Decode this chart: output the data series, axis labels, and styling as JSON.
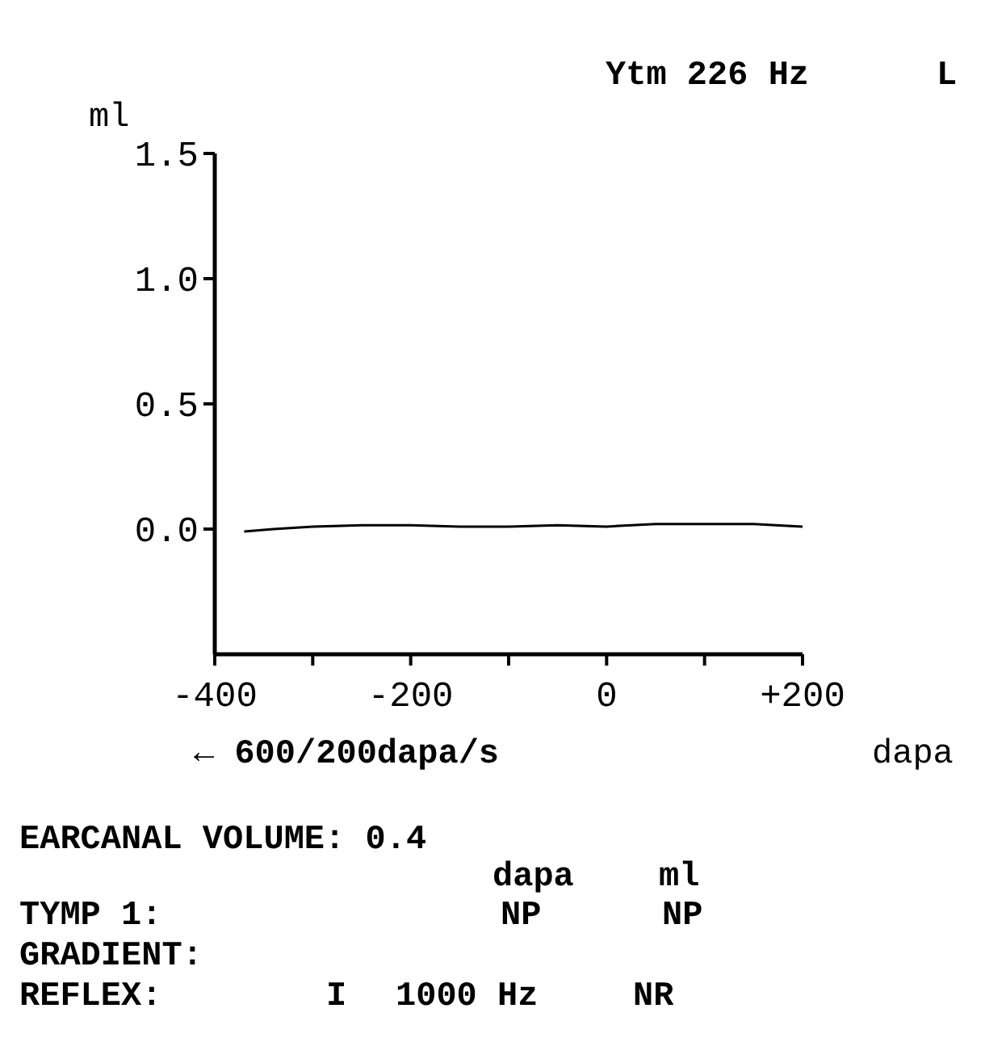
{
  "chart_data": {
    "type": "line",
    "title": "Ytm 226 Hz",
    "xlabel": "dapa",
    "ylabel": "ml",
    "annotations": [
      "L",
      "← 600/200dapa/s",
      "EARCANAL VOLUME: 0.4",
      "dapa",
      "ml",
      "TYMP 1:",
      "NP",
      "NP",
      "GRADIENT:",
      "REFLEX:",
      "I",
      "1000 Hz",
      "NR"
    ],
    "x": [
      -370,
      -340,
      -300,
      -250,
      -200,
      -150,
      -100,
      -50,
      0,
      50,
      100,
      150,
      200
    ],
    "series": [
      {
        "color": "#000000",
        "values": [
          -0.01,
          0.0,
          0.01,
          0.015,
          0.015,
          0.01,
          0.01,
          0.015,
          0.01,
          0.02,
          0.02,
          0.02,
          0.01
        ]
      }
    ],
    "xlim": [
      -400,
      200
    ],
    "xticks": [
      -400,
      {
        "value": -300,
        "label": null
      },
      -200,
      {
        "value": -100,
        "label": null
      },
      0,
      {
        "value": 100,
        "label": null
      },
      {
        "value": 200,
        "label": "+200"
      }
    ],
    "ylim": [
      -0.5,
      1.5
    ],
    "yticks": [
      {
        "value": 0,
        "label": "0.0"
      },
      {
        "value": 0.5,
        "label": "0.5"
      },
      {
        "value": 1,
        "label": "1.0"
      },
      {
        "value": 1.5,
        "label": "1.5"
      }
    ],
    "grid": false
  }
}
